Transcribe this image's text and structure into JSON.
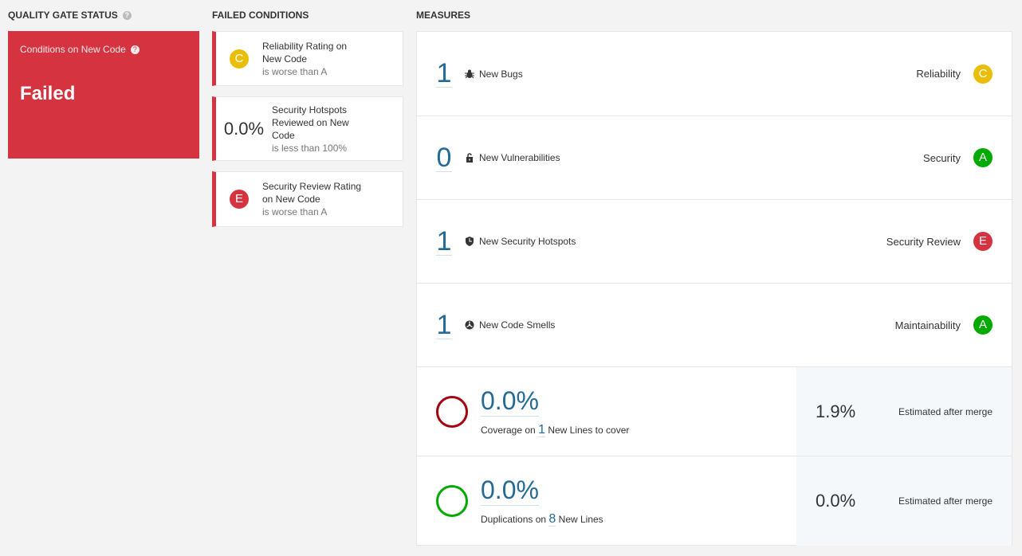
{
  "quality_gate": {
    "title": "QUALITY GATE STATUS",
    "subtitle": "Conditions on New Code",
    "status": "Failed",
    "color": "#d4333f"
  },
  "failed_conditions": {
    "title": "FAILED CONDITIONS",
    "items": [
      {
        "lead": "C",
        "lead_type": "rating",
        "lead_color": "#eabe06",
        "metric": "Reliability Rating on New Code",
        "comparison": "is worse than A"
      },
      {
        "lead": "0.0%",
        "lead_type": "value",
        "metric": "Security Hotspots Reviewed on New Code",
        "comparison": "is less than 100%"
      },
      {
        "lead": "E",
        "lead_type": "rating",
        "lead_color": "#d4333f",
        "metric": "Security Review Rating on New Code",
        "comparison": "is worse than A"
      }
    ]
  },
  "measures": {
    "title": "MEASURES",
    "rows": [
      {
        "value": "1",
        "label": "New Bugs",
        "icon": "bug-icon",
        "category": "Reliability",
        "rating": "C",
        "rating_color": "#eabe06"
      },
      {
        "value": "0",
        "label": "New Vulnerabilities",
        "icon": "lock-icon",
        "category": "Security",
        "rating": "A",
        "rating_color": "#00aa00"
      },
      {
        "value": "1",
        "label": "New Security Hotspots",
        "icon": "shield-icon",
        "category": "Security Review",
        "rating": "E",
        "rating_color": "#d4333f"
      },
      {
        "value": "1",
        "label": "New Code Smells",
        "icon": "code-smell-icon",
        "category": "Maintainability",
        "rating": "A",
        "rating_color": "#00aa00"
      }
    ],
    "coverage": {
      "value": "0.0%",
      "prefix": "Coverage on",
      "lines": "1",
      "suffix": "New Lines to cover",
      "estimate": "1.9%",
      "estimate_label": "Estimated after merge",
      "circle_color": "#a4030f"
    },
    "duplications": {
      "value": "0.0%",
      "prefix": "Duplications on",
      "lines": "8",
      "suffix": "New Lines",
      "estimate": "0.0%",
      "estimate_label": "Estimated after merge",
      "circle_color": "#00aa00"
    }
  }
}
